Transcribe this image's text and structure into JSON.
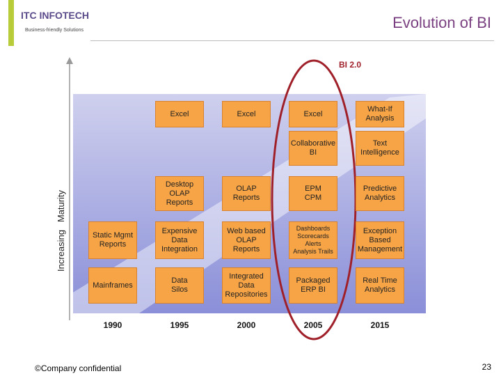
{
  "header": {
    "logo": "ITC INFOTECH",
    "tagline": "Business-friendly Solutions",
    "title": "Evolution of BI"
  },
  "diagram": {
    "callout": "BI 2.0",
    "y_axis_label": "Increasing   Maturity",
    "columns": [
      {
        "year": "1990",
        "boxes": [
          null,
          null,
          null,
          "Static Mgmt\nReports",
          "Mainframes"
        ]
      },
      {
        "year": "1995",
        "boxes": [
          "Excel",
          null,
          "Desktop\nOLAP\nReports",
          "Expensive\nData\nIntegration",
          "Data\nSilos"
        ]
      },
      {
        "year": "2000",
        "boxes": [
          "Excel",
          null,
          "OLAP\nReports",
          "Web based\nOLAP\nReports",
          "Integrated\nData\nRepositories"
        ]
      },
      {
        "year": "2005",
        "boxes": [
          "Excel",
          "Collaborative\nBI",
          "EPM\nCPM",
          "Dashboards\nScorecards\nAlerts\nAnalysis Trails",
          "Packaged\nERP BI"
        ]
      },
      {
        "year": "2015",
        "boxes": [
          "What-If\nAnalysis",
          "Text\nIntelligence",
          "Predictive\nAnalytics",
          "Exception\nBased\nManagement",
          "Real Time\nAnalytics"
        ]
      }
    ]
  },
  "footer": {
    "confidential": "©Company confidential",
    "page": "23"
  }
}
